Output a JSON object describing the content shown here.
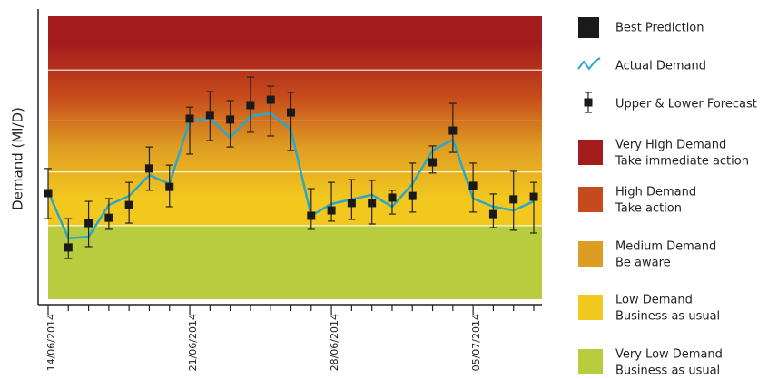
{
  "chart_data": {
    "type": "line",
    "ylabel": "Demand (Ml/D)",
    "categories": [
      "14/06/2014",
      null,
      null,
      null,
      null,
      null,
      null,
      "21/06/2014",
      null,
      null,
      null,
      null,
      null,
      null,
      "28/06/2014",
      null,
      null,
      null,
      null,
      null,
      null,
      "05/07/2014",
      null,
      null,
      null
    ],
    "ylim": [
      0,
      100
    ],
    "series": [
      {
        "name": "Best Prediction",
        "color": "#1a1a1a",
        "values": [
          37.5,
          18.3,
          26.9,
          28.8,
          33.3,
          46.2,
          39.7,
          63.8,
          65.1,
          63.5,
          68.6,
          70.5,
          66.0,
          29.5,
          31.4,
          34.0,
          34.0,
          35.9,
          36.5,
          48.4,
          59.6,
          40.1,
          30.1,
          35.3,
          36.2
        ],
        "upper": [
          46.2,
          28.5,
          34.6,
          35.6,
          41.3,
          53.8,
          47.4,
          67.9,
          73.4,
          70.2,
          78.5,
          75.3,
          73.1,
          39.1,
          41.3,
          42.3,
          42.0,
          38.5,
          48.1,
          54.2,
          69.2,
          48.1,
          37.2,
          45.2,
          41.3
        ],
        "lower": [
          28.5,
          14.4,
          18.6,
          24.7,
          26.9,
          38.5,
          32.7,
          51.3,
          56.1,
          53.8,
          59.0,
          57.7,
          52.6,
          24.7,
          27.6,
          28.2,
          26.6,
          30.1,
          30.8,
          44.6,
          51.9,
          30.8,
          25.3,
          24.4,
          23.4
        ]
      },
      {
        "name": "Actual Demand",
        "color": "#2aa8c9",
        "values": [
          38.1,
          21.5,
          22.1,
          33.3,
          36.5,
          43.9,
          40.7,
          63.1,
          63.8,
          57.1,
          64.7,
          65.7,
          59.9,
          29.5,
          33.7,
          35.3,
          36.9,
          32.7,
          40.7,
          52.6,
          56.4,
          35.6,
          32.7,
          31.4,
          34.6
        ]
      }
    ],
    "error_bar_name": "Upper & Lower Forecast",
    "bands": [
      {
        "name": "Very High Demand",
        "note": "Take immediate action",
        "color": "#a31c1c",
        "from": 81
      },
      {
        "name": "High Demand",
        "note": "Take action",
        "color": "#c64a1c",
        "from": 63
      },
      {
        "name": "Medium Demand",
        "note": "Be aware",
        "color": "#df9c22",
        "from": 45
      },
      {
        "name": "Low Demand",
        "note": "Business as usual",
        "color": "#f2c81e",
        "from": 26
      },
      {
        "name": "Very Low Demand",
        "note": "Business as usual",
        "color": "#b8cc3e",
        "from": 0
      }
    ]
  }
}
